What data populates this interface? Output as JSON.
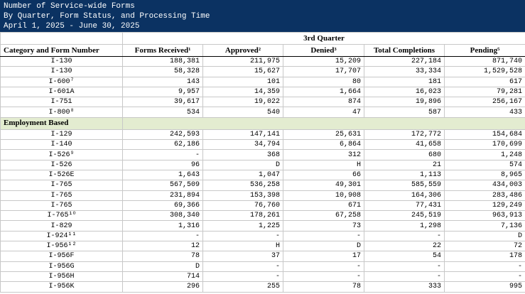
{
  "header": {
    "title": "Number of Service-wide Forms",
    "subtitle": "By Quarter, Form Status, and Processing Time",
    "date_range": "April 1, 2025 - June 30, 2025"
  },
  "table": {
    "quarter": "3rd Quarter",
    "columns": [
      "Category and Form Number",
      "Forms Received¹",
      "Approved²",
      "Denied³",
      "Total Completions",
      "Pending⁵"
    ],
    "sections": [
      {
        "rows": [
          [
            "I-130",
            "188,381",
            "211,975",
            "15,209",
            "227,184",
            "871,740"
          ],
          [
            "I-130",
            "58,328",
            "15,627",
            "17,707",
            "33,334",
            "1,529,528"
          ],
          [
            "I-600⁷",
            "143",
            "101",
            "80",
            "181",
            "617"
          ],
          [
            "I-601A",
            "9,957",
            "14,359",
            "1,664",
            "16,023",
            "79,281"
          ],
          [
            "I-751",
            "39,617",
            "19,022",
            "874",
            "19,896",
            "256,167"
          ],
          [
            "I-800⁸",
            "534",
            "540",
            "47",
            "587",
            "433"
          ]
        ]
      },
      {
        "name": "Employment Based",
        "rows": [
          [
            "I-129",
            "242,593",
            "147,141",
            "25,631",
            "172,772",
            "154,684"
          ],
          [
            "I-140",
            "62,186",
            "34,794",
            "6,864",
            "41,658",
            "170,699"
          ],
          [
            "I-526⁹",
            "-",
            "368",
            "312",
            "680",
            "1,248"
          ],
          [
            "I-526",
            "96",
            "D",
            "H",
            "21",
            "574"
          ],
          [
            "I-526E",
            "1,643",
            "1,047",
            "66",
            "1,113",
            "8,965"
          ],
          [
            "I-765",
            "567,509",
            "536,258",
            "49,301",
            "585,559",
            "434,003"
          ],
          [
            "I-765",
            "231,894",
            "153,398",
            "10,908",
            "164,306",
            "283,486"
          ],
          [
            "I-765",
            "69,366",
            "76,760",
            "671",
            "77,431",
            "129,249"
          ],
          [
            "I-765¹⁰",
            "308,340",
            "178,261",
            "67,258",
            "245,519",
            "963,913"
          ],
          [
            "I-829",
            "1,316",
            "1,225",
            "73",
            "1,298",
            "7,136"
          ],
          [
            "I-924¹¹",
            "-",
            "-",
            "-",
            "-",
            "D"
          ],
          [
            "I-956¹²",
            "12",
            "H",
            "D",
            "22",
            "72"
          ],
          [
            "I-956F",
            "78",
            "37",
            "17",
            "54",
            "178"
          ],
          [
            "I-956G",
            "D",
            "-",
            "-",
            "-",
            "-"
          ],
          [
            "I-956H",
            "714",
            "-",
            "-",
            "-",
            "-"
          ],
          [
            "I-956K",
            "296",
            "255",
            "78",
            "333",
            "995"
          ]
        ]
      }
    ]
  }
}
